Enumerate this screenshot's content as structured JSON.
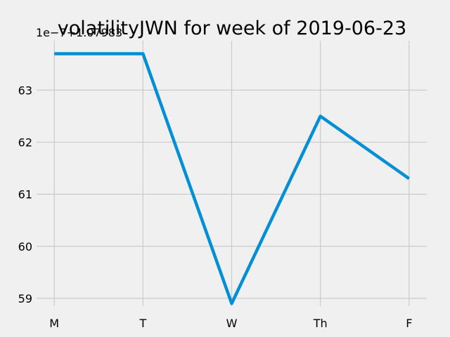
{
  "chart_data": {
    "type": "line",
    "title": "volatilityJWN for week of 2019-06-23",
    "offset_label": "1e−7+1.07983",
    "xlabel": "",
    "ylabel": "",
    "categories": [
      "M",
      "T",
      "W",
      "Th",
      "F"
    ],
    "series": [
      {
        "values": [
          63.7,
          63.7,
          58.9,
          62.5,
          61.3
        ]
      }
    ],
    "yticks": [
      59,
      60,
      61,
      62,
      63
    ],
    "ytick_labels": [
      "59",
      "60",
      "61",
      "62",
      "63"
    ],
    "ylim": [
      58.85,
      63.95
    ],
    "grid": true,
    "legend": "none",
    "colors": {
      "background": "#f0f0f0",
      "line": "#008fd5",
      "grid": "#cbcbcb"
    }
  }
}
